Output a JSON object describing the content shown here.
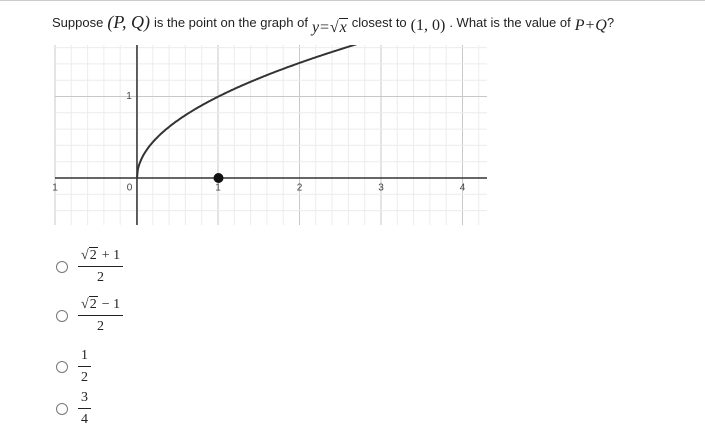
{
  "question": {
    "parts": [
      "Suppose",
      "(P, Q)",
      "is the point on the graph of",
      "y=",
      "x",
      "closest to",
      "(1, 0)",
      ". What is the value of",
      "P+Q",
      "?"
    ]
  },
  "graph": {
    "x_tick_labels": [
      "1",
      "0",
      "1",
      "2",
      "3",
      "4"
    ],
    "y_tick_labels": [
      "1"
    ]
  },
  "choices": [
    {
      "radicand": "2",
      "rest": "+ 1",
      "denominator": "2"
    },
    {
      "radicand": "2",
      "rest": "− 1",
      "denominator": "2"
    },
    {
      "numerator": "1",
      "denominator": "2"
    },
    {
      "numerator": "3",
      "denominator": "4"
    }
  ]
}
